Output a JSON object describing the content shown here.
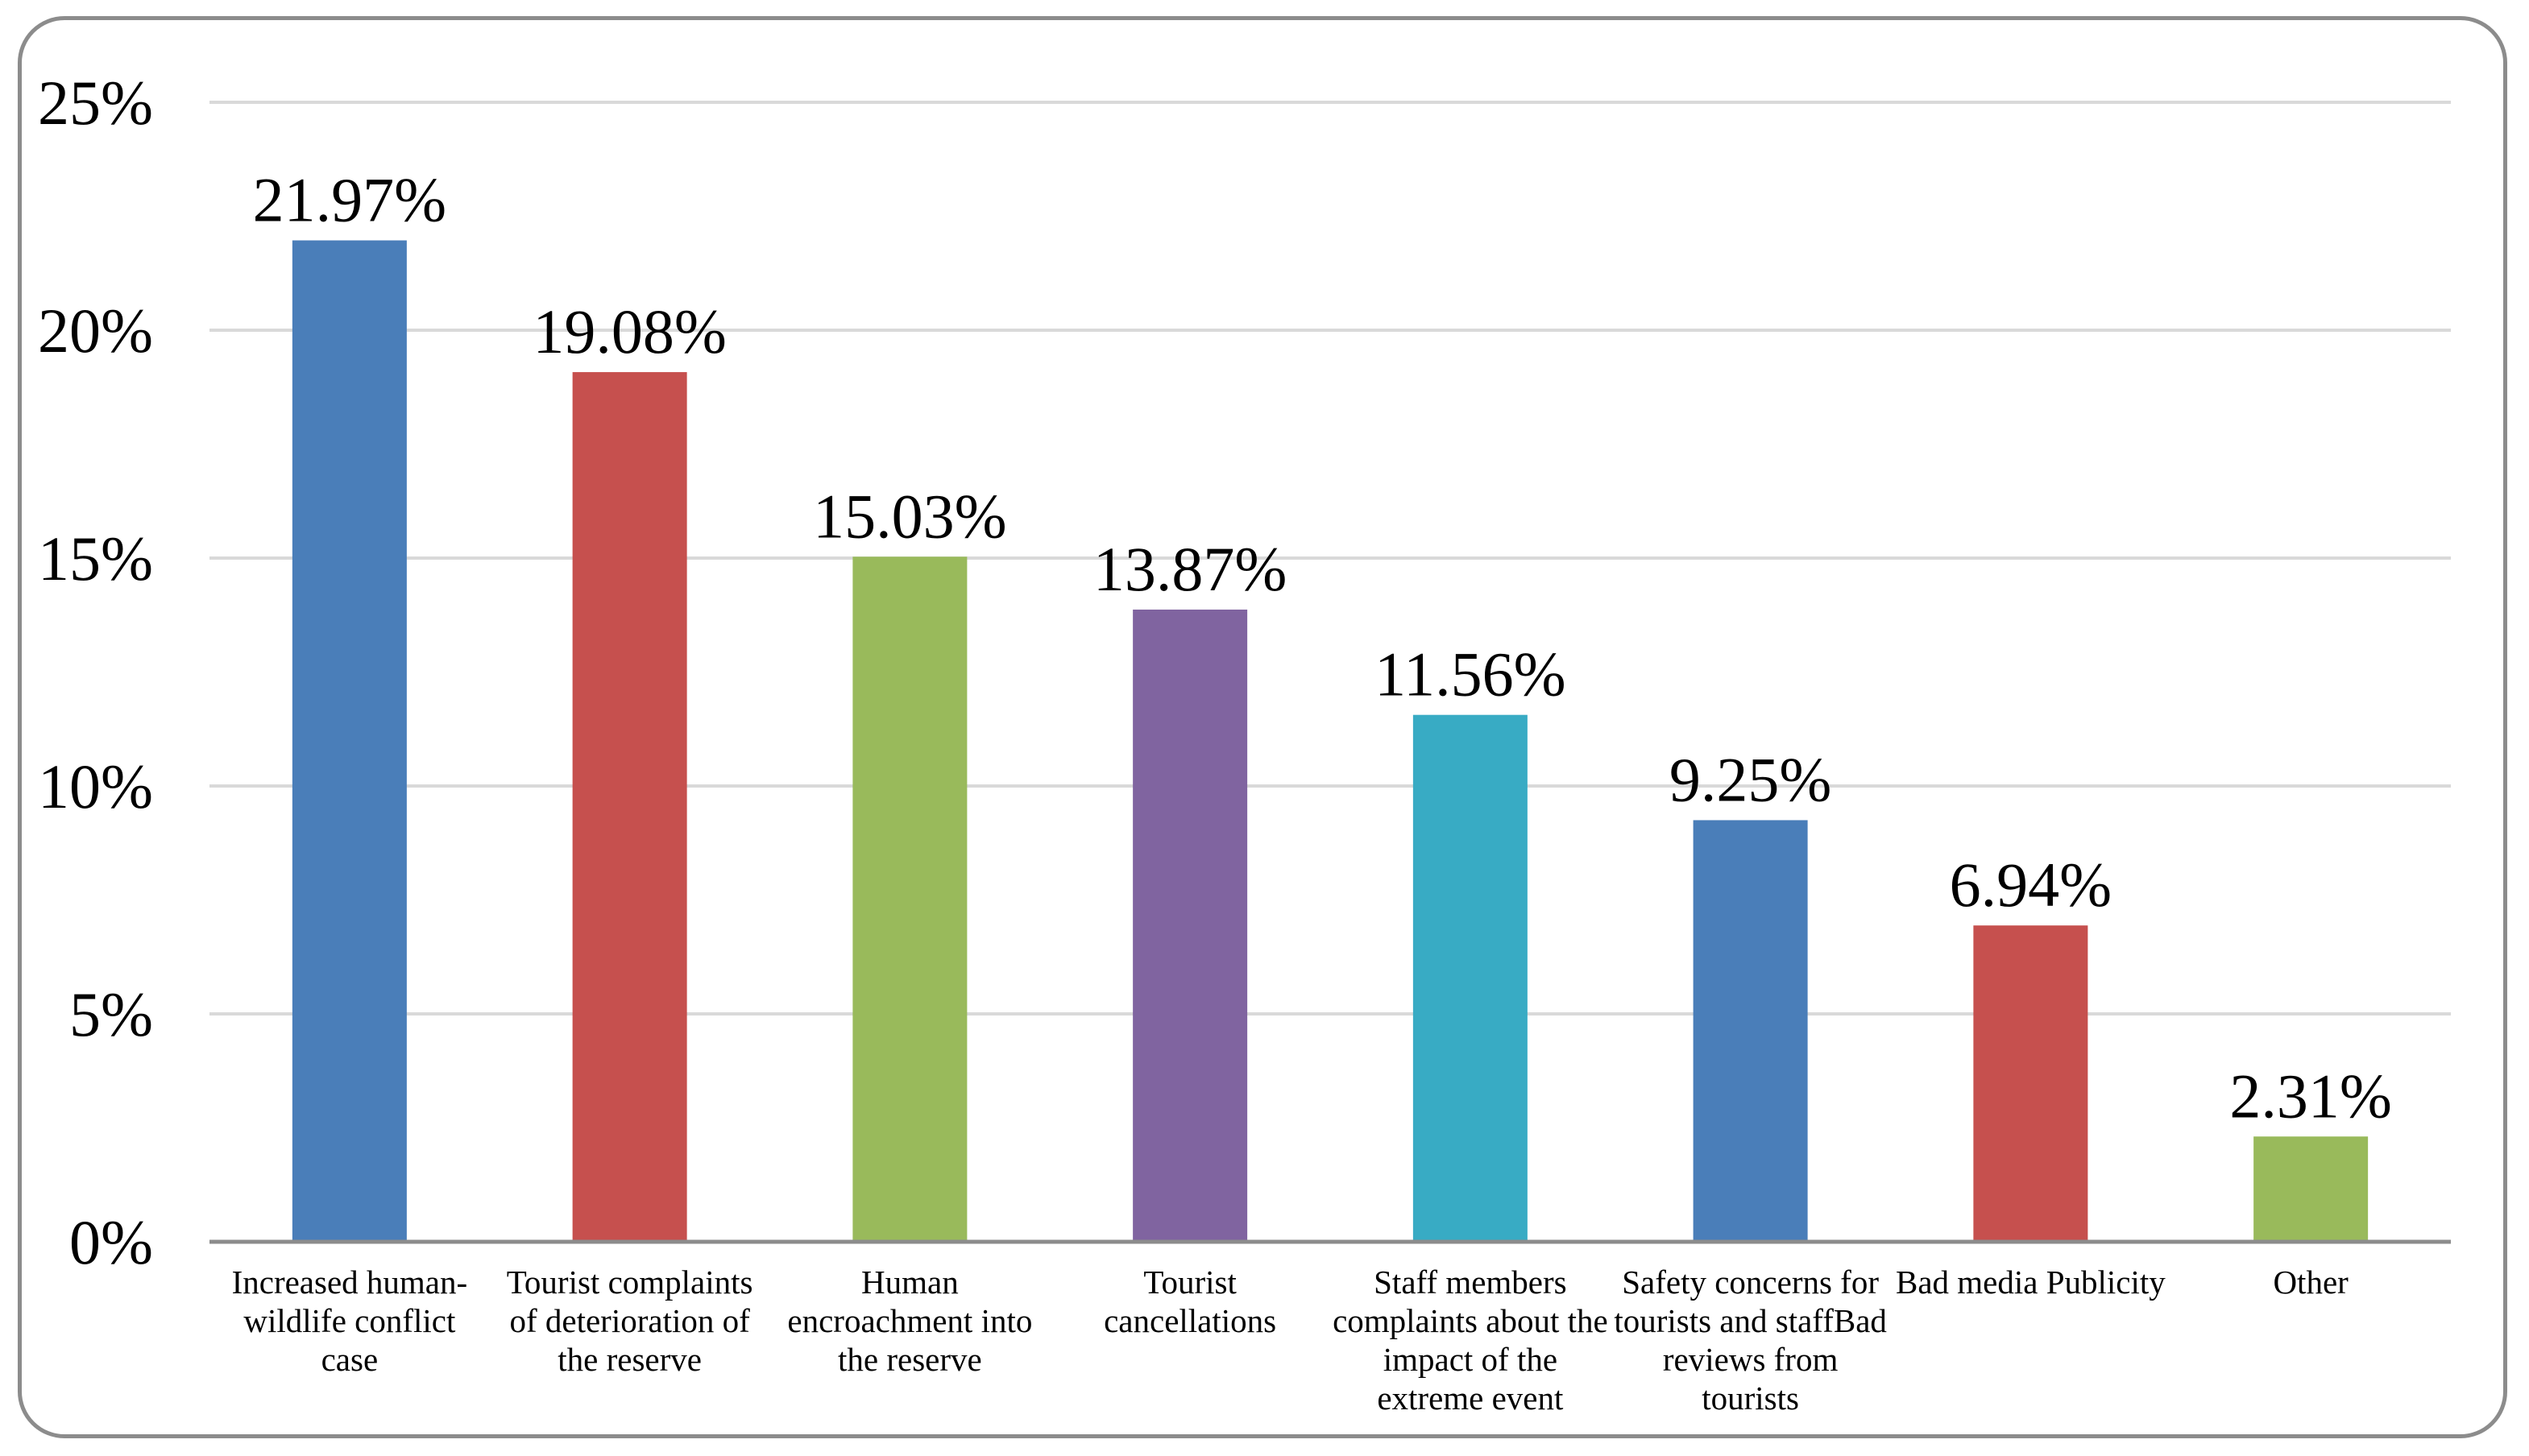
{
  "chart_data": {
    "type": "bar",
    "title": "",
    "xlabel": "",
    "ylabel": "",
    "ylim": [
      0,
      25
    ],
    "yticks": [
      0,
      5,
      10,
      15,
      20,
      25
    ],
    "ytick_labels": [
      "0%",
      "5%",
      "10%",
      "15%",
      "20%",
      "25%"
    ],
    "grid": true,
    "legend": "none",
    "categories": [
      [
        "Increased human-",
        "wildlife conflict",
        "case"
      ],
      [
        "Tourist complaints",
        "of deterioration of",
        "the reserve"
      ],
      [
        "Human",
        "encroachment into",
        "the reserve"
      ],
      [
        "Tourist",
        "cancellations"
      ],
      [
        "Staff members",
        "complaints about the",
        "impact of the",
        "extreme event"
      ],
      [
        "Safety concerns for",
        "tourists and staffBad",
        "reviews from",
        "tourists"
      ],
      [
        "Bad media Publicity"
      ],
      [
        "Other"
      ]
    ],
    "values": [
      21.97,
      19.08,
      15.03,
      13.87,
      11.56,
      9.25,
      6.94,
      2.31
    ],
    "data_labels": [
      "21.97%",
      "19.08%",
      "15.03%",
      "13.87%",
      "11.56%",
      "9.25%",
      "6.94%",
      "2.31%"
    ],
    "bar_colors": [
      "#4a7eb9",
      "#c6504e",
      "#99ba5b",
      "#8064a0",
      "#38abc4",
      "#4a7eb9",
      "#c6504e",
      "#99ba5b"
    ],
    "grid_color": "#d9d9d9",
    "axis_color": "#8c8c8c"
  }
}
